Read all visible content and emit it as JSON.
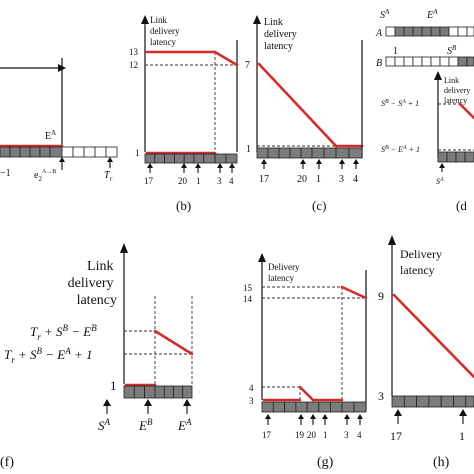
{
  "panels": {
    "a": {
      "ea": "E",
      "ea_sup": "A",
      "minus1": "−1",
      "e2": "e",
      "e2_sub": "2",
      "e2_sup": "A→B",
      "tr": "T",
      "tr_sub": "r"
    },
    "b": {
      "ylabel": [
        "Link",
        "delivery",
        "latency"
      ],
      "y13": "13",
      "y12": "12",
      "y1": "1",
      "x17": "17",
      "x20": "20",
      "x1": "1",
      "x3": "3",
      "x4": "4",
      "caption": "(b)"
    },
    "c": {
      "ylabel": [
        "Link",
        "delivery",
        "latency"
      ],
      "y7": "7",
      "y1": "1",
      "x17": "17",
      "x20": "20",
      "x1": "1",
      "x3": "3",
      "x4": "4",
      "caption": "(c)"
    },
    "d": {
      "sa": "S",
      "sa_sup": "A",
      "ea": "E",
      "ea_sup": "A",
      "rowA": "A",
      "rowB": "B",
      "one": "1",
      "sb": "S",
      "sb_sup": "B",
      "ylabel": [
        "Link",
        "delivery",
        "latency"
      ],
      "ytop": "S",
      "ytop_sup1": "B",
      "ytop_mid": " − S",
      "ytop_sup2": "A",
      "ytop_end": " + 1",
      "ybot": "S",
      "ybot_sup1": "B",
      "ybot_mid": " − E",
      "ybot_sup2": "A",
      "ybot_end": " + 1",
      "xsa": "S",
      "xsa_sup": "A",
      "caption": "(d"
    },
    "f": {
      "ylabel": [
        "Link",
        "delivery",
        "latency"
      ],
      "ytop_t": "T",
      "ytop_sub": "r",
      "ytop_rest1": " + S",
      "ytop_sup1": "B",
      "ytop_rest2": " − E",
      "ytop_sup2": "B",
      "ybot_t": "T",
      "ybot_sub": "r",
      "ybot_rest1": " + S",
      "ybot_sup1": "B",
      "ybot_rest2": " − E",
      "ybot_sup2": "A",
      "ybot_end": " + 1",
      "y1": "1",
      "xsa": "S",
      "xsa_sup": "A",
      "xeb": "E",
      "xeb_sup": "B",
      "xea": "E",
      "xea_sup": "A",
      "caption": "(f)"
    },
    "g": {
      "ylabel": [
        "Delivery",
        "latency"
      ],
      "y15": "15",
      "y14": "14",
      "y4": "4",
      "y3": "3",
      "x17": "17",
      "x19": "19",
      "x20": "20",
      "x1": "1",
      "x3": "3",
      "x4": "4",
      "caption": "(g)"
    },
    "h": {
      "ylabel": [
        "Delivery",
        "latency"
      ],
      "y9": "9",
      "y3": "3",
      "x17": "17",
      "x1": "1",
      "caption": "(h)"
    }
  }
}
